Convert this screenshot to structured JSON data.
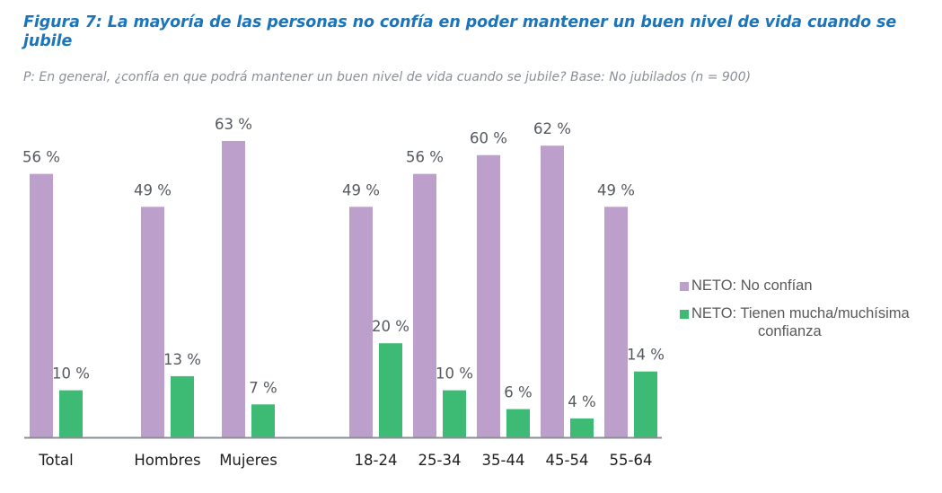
{
  "header": {
    "title": "Figura 7: La mayoría de las personas no confía en poder mantener un buen nivel de vida cuando se jubile",
    "subtitle": "P: En general, ¿confía en que podrá mantener un buen nivel de vida cuando se jubile? Base: No jubilados (n = 900)"
  },
  "colors": {
    "title": "#1c75b8",
    "no_confian": "#bd9fcb",
    "confianza": "#3dba74",
    "axis": "#8a8f96"
  },
  "legend": {
    "items": [
      {
        "label": "NETO: No confían",
        "color": "#bd9fcb"
      },
      {
        "label_line1": "NETO: Tienen mucha/muchísima",
        "label_line2": "confianza",
        "color": "#3dba74"
      }
    ]
  },
  "chart_data": {
    "type": "bar",
    "title": "Figura 7: La mayoría de las personas no confía en poder mantener un buen nivel de vida cuando se jubile",
    "subtitle": "P: En general, ¿confía en que podrá mantener un buen nivel de vida cuando se jubile? Base: No jubilados (n = 900)",
    "categories": [
      "Total",
      "Hombres",
      "Mujeres",
      "18-24",
      "25-34",
      "35-44",
      "45-54",
      "55-64"
    ],
    "groups": [
      [
        "Total"
      ],
      [
        "Hombres",
        "Mujeres"
      ],
      [
        "18-24",
        "25-34",
        "35-44",
        "45-54",
        "55-64"
      ]
    ],
    "series": [
      {
        "name": "NETO: No confían",
        "color": "#bd9fcb",
        "values": [
          56,
          49,
          63,
          49,
          56,
          60,
          62,
          49
        ]
      },
      {
        "name": "NETO: Tienen mucha/muchísima confianza",
        "color": "#3dba74",
        "values": [
          10,
          13,
          7,
          20,
          10,
          6,
          4,
          14
        ]
      }
    ],
    "value_labels": {
      "NETO: No confían": [
        "56 %",
        "49 %",
        "63 %",
        "49 %",
        "56 %",
        "60 %",
        "62 %",
        "49 %"
      ],
      "NETO: Tienen mucha/muchísima confianza": [
        "10 %",
        "13 %",
        "7 %",
        "20 %",
        "10 %",
        "6 %",
        "4 %",
        "14 %"
      ]
    },
    "xlabel": "",
    "ylabel": "",
    "ylim": [
      0,
      63
    ],
    "unit": "%",
    "grid": false,
    "y_axis_visible": false,
    "legend_position": "right"
  }
}
